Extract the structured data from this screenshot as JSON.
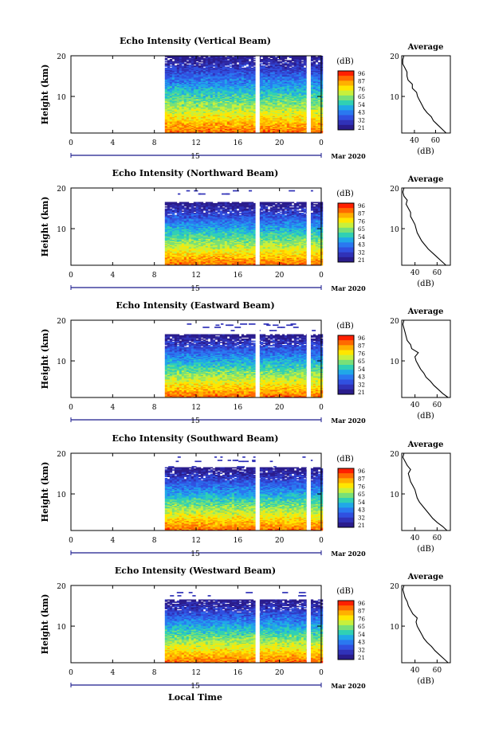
{
  "figure": {
    "x_axis_label": "Local Time",
    "date_label": "Mar 2020",
    "day_label": "15"
  },
  "colorbar": {
    "unit": "(dB)",
    "ticks": [
      "96",
      "87",
      "76",
      "65",
      "54",
      "43",
      "32",
      "21"
    ],
    "colors": [
      "#ff2000",
      "#ff6a00",
      "#ffb000",
      "#ffe600",
      "#c8f03c",
      "#78e078",
      "#30d0b4",
      "#20a8e8",
      "#2a78f0",
      "#3050e0",
      "#3032b8",
      "#2a1c8c"
    ]
  },
  "chart_data": [
    {
      "type": "heatmap",
      "title": "Echo Intensity (Vertical Beam)",
      "ylabel": "Height (km)",
      "xlim": [
        0,
        24
      ],
      "ylim": [
        1,
        20
      ],
      "x_ticks": [
        "0",
        "4",
        "8",
        "12",
        "16",
        "20",
        "0"
      ],
      "y_ticks": [
        "20",
        "10"
      ],
      "data_time_range": [
        9.0,
        24.0
      ],
      "gaps": [
        [
          17.7,
          18.1
        ],
        [
          22.6,
          23.0
        ]
      ],
      "profile": {
        "title": "Average",
        "xlabel": "(dB)",
        "x_ticks": [
          "40",
          "60"
        ],
        "xlim": [
          28,
          74
        ],
        "heights": [
          1,
          2,
          3,
          4,
          5,
          6,
          7,
          8,
          9,
          10,
          11,
          12,
          13,
          14,
          15,
          16,
          17,
          18,
          19,
          20
        ],
        "values": [
          70,
          66,
          62,
          58,
          56,
          52,
          49,
          47,
          45,
          43,
          42,
          38,
          38,
          34,
          33,
          33,
          31,
          29,
          29,
          30
        ]
      }
    },
    {
      "type": "heatmap",
      "title": "Echo Intensity (Northward Beam)",
      "ylabel": "Height (km)",
      "xlim": [
        0,
        24
      ],
      "ylim": [
        1,
        20
      ],
      "x_ticks": [
        "0",
        "4",
        "8",
        "12",
        "16",
        "20",
        "0"
      ],
      "y_ticks": [
        "20",
        "10"
      ],
      "data_time_range": [
        9.0,
        24.0
      ],
      "gaps": [
        [
          17.7,
          18.1
        ],
        [
          22.6,
          23.0
        ]
      ],
      "profile": {
        "title": "Average",
        "xlabel": "(dB)",
        "x_ticks": [
          "40",
          "60"
        ],
        "xlim": [
          28,
          72
        ],
        "heights": [
          1,
          2,
          3,
          4,
          5,
          6,
          7,
          8,
          9,
          10,
          11,
          12,
          13,
          14,
          15,
          16,
          17,
          18,
          19,
          20
        ],
        "values": [
          68,
          64,
          60,
          56,
          52,
          49,
          46,
          44,
          42,
          41,
          40,
          38,
          36,
          36,
          34,
          32,
          33,
          30,
          29,
          30
        ]
      }
    },
    {
      "type": "heatmap",
      "title": "Echo Intensity (Eastward Beam)",
      "ylabel": "Height (km)",
      "xlim": [
        0,
        24
      ],
      "ylim": [
        1,
        20
      ],
      "x_ticks": [
        "0",
        "4",
        "8",
        "12",
        "16",
        "20",
        "0"
      ],
      "y_ticks": [
        "20",
        "10"
      ],
      "data_time_range": [
        9.0,
        24.0
      ],
      "gaps": [
        [
          17.7,
          18.1
        ],
        [
          22.6,
          23.0
        ]
      ],
      "profile": {
        "title": "Average",
        "xlabel": "(dB)",
        "x_ticks": [
          "40",
          "60"
        ],
        "xlim": [
          28,
          72
        ],
        "heights": [
          1,
          2,
          3,
          4,
          5,
          6,
          7,
          8,
          9,
          10,
          11,
          12,
          13,
          14,
          15,
          16,
          17,
          18,
          19,
          20
        ],
        "values": [
          70,
          65,
          61,
          57,
          54,
          50,
          48,
          45,
          43,
          41,
          40,
          43,
          37,
          36,
          33,
          32,
          31,
          30,
          29,
          30
        ]
      }
    },
    {
      "type": "heatmap",
      "title": "Echo Intensity (Southward Beam)",
      "ylabel": "Height (km)",
      "xlim": [
        0,
        24
      ],
      "ylim": [
        1,
        20
      ],
      "x_ticks": [
        "0",
        "4",
        "8",
        "12",
        "16",
        "20",
        "0"
      ],
      "y_ticks": [
        "20",
        "10"
      ],
      "data_time_range": [
        9.0,
        24.0
      ],
      "gaps": [
        [
          17.7,
          18.1
        ],
        [
          22.6,
          23.0
        ]
      ],
      "profile": {
        "title": "Average",
        "xlabel": "(dB)",
        "x_ticks": [
          "40",
          "60"
        ],
        "xlim": [
          28,
          72
        ],
        "heights": [
          1,
          2,
          3,
          4,
          5,
          6,
          7,
          8,
          9,
          10,
          11,
          12,
          13,
          14,
          15,
          16,
          17,
          18,
          19,
          20
        ],
        "values": [
          69,
          65,
          60,
          56,
          53,
          50,
          47,
          44,
          42,
          41,
          40,
          38,
          36,
          35,
          34,
          36,
          33,
          31,
          29,
          30
        ]
      }
    },
    {
      "type": "heatmap",
      "title": "Echo Intensity (Westward Beam)",
      "ylabel": "Height (km)",
      "xlim": [
        0,
        24
      ],
      "ylim": [
        1,
        20
      ],
      "x_ticks": [
        "0",
        "4",
        "8",
        "12",
        "16",
        "20",
        "0"
      ],
      "y_ticks": [
        "20",
        "10"
      ],
      "data_time_range": [
        9.0,
        24.0
      ],
      "gaps": [
        [
          17.7,
          18.1
        ],
        [
          22.6,
          23.0
        ]
      ],
      "profile": {
        "title": "Average",
        "xlabel": "(dB)",
        "x_ticks": [
          "40",
          "60"
        ],
        "xlim": [
          28,
          72
        ],
        "heights": [
          1,
          2,
          3,
          4,
          5,
          6,
          7,
          8,
          9,
          10,
          11,
          12,
          13,
          14,
          15,
          16,
          17,
          18,
          19,
          20
        ],
        "values": [
          70,
          66,
          62,
          58,
          55,
          51,
          48,
          46,
          44,
          42,
          41,
          42,
          38,
          36,
          34,
          33,
          31,
          30,
          29,
          30
        ]
      }
    }
  ]
}
